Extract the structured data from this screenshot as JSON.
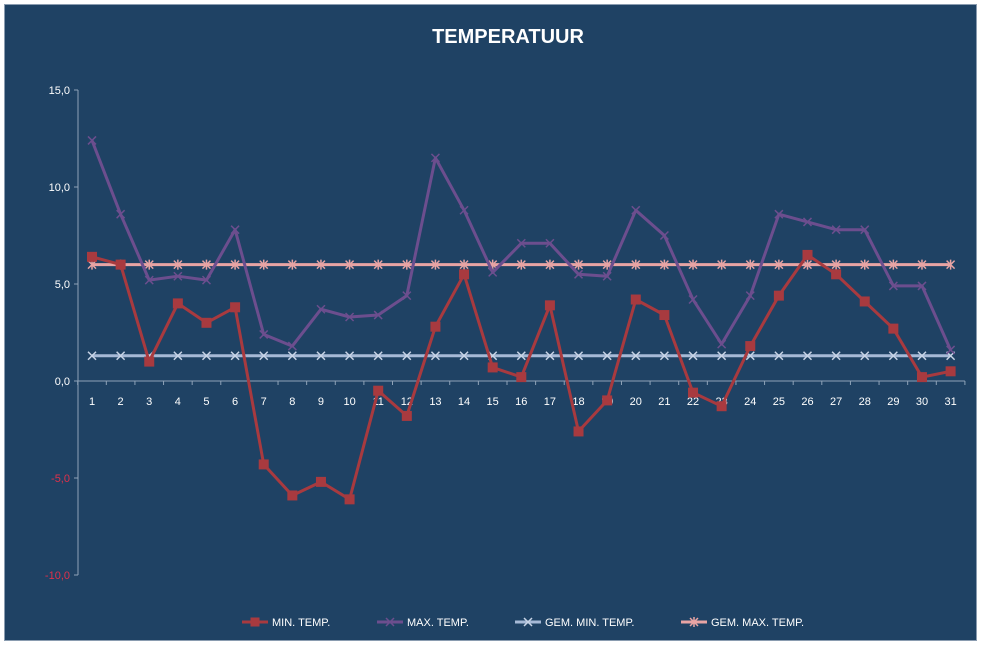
{
  "chart_data": {
    "type": "line",
    "title": "TEMPERATUUR",
    "xlabel": "",
    "ylabel": "",
    "ylim": [
      -10,
      15
    ],
    "yticks": [
      -10,
      -5,
      0,
      5,
      10,
      15
    ],
    "ytick_labels": [
      "-10,0",
      "-5,0",
      "0,0",
      "5,0",
      "10,0",
      "15,0"
    ],
    "negative_tick_color": "#e0304a",
    "positive_tick_color": "#ffffff",
    "background_color": "#1f4264",
    "grid": false,
    "legend_position": "bottom",
    "categories": [
      "1",
      "2",
      "3",
      "4",
      "5",
      "6",
      "7",
      "8",
      "9",
      "10",
      "11",
      "12",
      "13",
      "14",
      "15",
      "16",
      "17",
      "18",
      "19",
      "20",
      "21",
      "22",
      "23",
      "24",
      "25",
      "26",
      "27",
      "28",
      "29",
      "30",
      "31"
    ],
    "series": [
      {
        "name": "MIN. TEMP.",
        "color": "#a83a3f",
        "marker": "square",
        "values": [
          6.4,
          6.0,
          1.0,
          4.0,
          3.0,
          3.8,
          -4.3,
          -5.9,
          -5.2,
          -6.1,
          -0.5,
          -1.8,
          2.8,
          5.5,
          0.7,
          0.2,
          3.9,
          -2.6,
          -1.0,
          4.2,
          3.4,
          -0.6,
          -1.3,
          1.8,
          4.4,
          6.5,
          5.5,
          4.1,
          2.7,
          0.2,
          0.5
        ]
      },
      {
        "name": "MAX. TEMP.",
        "color": "#6c4e8e",
        "marker": "x",
        "values": [
          12.4,
          8.6,
          5.2,
          5.4,
          5.2,
          7.8,
          2.4,
          1.8,
          3.7,
          3.3,
          3.4,
          4.4,
          11.5,
          8.8,
          5.6,
          7.1,
          7.1,
          5.5,
          5.4,
          8.8,
          7.5,
          4.2,
          1.9,
          4.4,
          8.6,
          8.2,
          7.8,
          7.8,
          4.9,
          4.9,
          1.6
        ]
      },
      {
        "name": "GEM. MIN. TEMP.",
        "color": "#a6b9d6",
        "marker": "x",
        "values": [
          1.3,
          1.3,
          1.3,
          1.3,
          1.3,
          1.3,
          1.3,
          1.3,
          1.3,
          1.3,
          1.3,
          1.3,
          1.3,
          1.3,
          1.3,
          1.3,
          1.3,
          1.3,
          1.3,
          1.3,
          1.3,
          1.3,
          1.3,
          1.3,
          1.3,
          1.3,
          1.3,
          1.3,
          1.3,
          1.3,
          1.3
        ]
      },
      {
        "name": "GEM. MAX. TEMP.",
        "color": "#e8a4a4",
        "marker": "star",
        "values": [
          6.0,
          6.0,
          6.0,
          6.0,
          6.0,
          6.0,
          6.0,
          6.0,
          6.0,
          6.0,
          6.0,
          6.0,
          6.0,
          6.0,
          6.0,
          6.0,
          6.0,
          6.0,
          6.0,
          6.0,
          6.0,
          6.0,
          6.0,
          6.0,
          6.0,
          6.0,
          6.0,
          6.0,
          6.0,
          6.0,
          6.0
        ]
      }
    ]
  }
}
